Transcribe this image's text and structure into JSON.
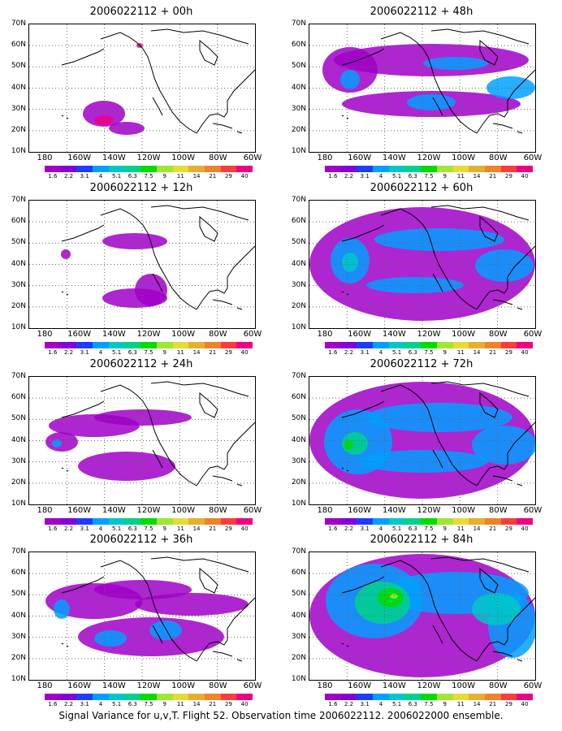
{
  "footer": "Signal Variance for u,v,T. Flight 52. Observation time 2006022112. 2006022000 ensemble.",
  "axes": {
    "lat_labels": [
      "70N",
      "60N",
      "50N",
      "40N",
      "30N",
      "20N",
      "10N"
    ],
    "lon_labels": [
      "180",
      "160W",
      "140W",
      "120W",
      "100W",
      "80W",
      "60W"
    ]
  },
  "colorbar": {
    "colors": [
      "#a000c8",
      "#8200dc",
      "#1e3cff",
      "#00a0ff",
      "#00c8c8",
      "#00d28c",
      "#00dc00",
      "#a0e632",
      "#e6dc32",
      "#e6af2d",
      "#f08228",
      "#fa3c3c",
      "#f00082"
    ],
    "labels": [
      "1.6",
      "2.2",
      "3.1",
      "4",
      "5.1",
      "6.3",
      "7.5",
      "9",
      "11",
      "14",
      "21",
      "29",
      "40"
    ]
  },
  "panels": [
    {
      "title": "2006022112 + 00h"
    },
    {
      "title": "2006022112 + 48h"
    },
    {
      "title": "2006022112 + 12h"
    },
    {
      "title": "2006022112 + 60h"
    },
    {
      "title": "2006022112 + 24h"
    },
    {
      "title": "2006022112 + 72h"
    },
    {
      "title": "2006022112 + 36h"
    },
    {
      "title": "2006022112 + 84h"
    }
  ]
}
